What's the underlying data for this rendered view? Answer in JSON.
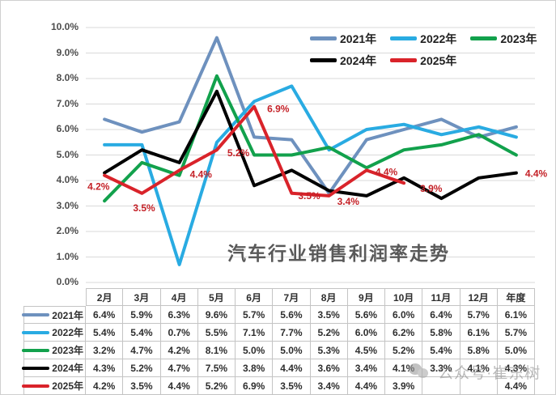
{
  "page": {
    "background": "#ffffff",
    "border_color": "#cfcfcf"
  },
  "chart": {
    "title": "汽车行业销售利润率走势",
    "watermark": "公众号·崔东树",
    "y_ticks": [
      "10.0%",
      "9.0%",
      "8.0%",
      "7.0%",
      "6.0%",
      "5.0%",
      "4.0%",
      "3.0%",
      "2.0%",
      "1.0%",
      "0.0%"
    ]
  },
  "chart_data": {
    "type": "line",
    "title": "汽车行业销售利润率走势",
    "categories": [
      "2月",
      "3月",
      "4月",
      "5月",
      "6月",
      "7月",
      "8月",
      "9月",
      "10月",
      "11月",
      "12月",
      "年度"
    ],
    "series": [
      {
        "name": "2021年",
        "color": "#6E91BE",
        "values": [
          6.4,
          5.9,
          6.3,
          9.6,
          5.7,
          5.6,
          3.5,
          5.6,
          6.0,
          6.4,
          5.7,
          6.1
        ]
      },
      {
        "name": "2022年",
        "color": "#29ABE2",
        "values": [
          5.4,
          5.4,
          0.7,
          5.5,
          7.1,
          7.7,
          5.2,
          6.0,
          6.2,
          5.8,
          6.1,
          5.7
        ]
      },
      {
        "name": "2023年",
        "color": "#12A14C",
        "values": [
          3.2,
          4.7,
          4.2,
          8.1,
          5.0,
          5.0,
          5.3,
          4.5,
          5.2,
          5.4,
          5.8,
          5.0
        ]
      },
      {
        "name": "2024年",
        "color": "#000000",
        "values": [
          4.3,
          5.2,
          4.7,
          7.5,
          3.8,
          4.4,
          3.6,
          3.4,
          4.1,
          3.3,
          4.1,
          4.3
        ]
      },
      {
        "name": "2025年",
        "color": "#D9232A",
        "values": [
          4.2,
          3.5,
          4.4,
          5.2,
          6.9,
          3.5,
          3.4,
          4.4,
          3.9,
          null,
          null,
          4.4
        ]
      }
    ],
    "ylim": [
      0,
      10
    ],
    "y_tick_step": 1,
    "grid": true,
    "gridline_color": "#d9d9d9",
    "legend_position": "top-right",
    "legend_rows": [
      [
        "2021年",
        "2022年",
        "2023年"
      ],
      [
        "2024年",
        "2025年"
      ]
    ],
    "data_labels": {
      "series": "2025年",
      "color": "#C42127",
      "labels": [
        "4.2%",
        "3.5%",
        "4.4%",
        "5.2%",
        "6.9%",
        "3.5%",
        "3.4%",
        "4.4%",
        "3.9%",
        "",
        "",
        "4.4%"
      ]
    }
  },
  "table": {
    "columns": [
      "2月",
      "3月",
      "4月",
      "5月",
      "6月",
      "7月",
      "8月",
      "9月",
      "10月",
      "11月",
      "12月",
      "年度"
    ],
    "rows": [
      {
        "label": "2021年",
        "color": "#6E91BE",
        "values": [
          "6.4%",
          "5.9%",
          "6.3%",
          "9.6%",
          "5.7%",
          "5.6%",
          "3.5%",
          "5.6%",
          "6.0%",
          "6.4%",
          "5.7%",
          "6.1%"
        ]
      },
      {
        "label": "2022年",
        "color": "#29ABE2",
        "values": [
          "5.4%",
          "5.4%",
          "0.7%",
          "5.5%",
          "7.1%",
          "7.7%",
          "5.2%",
          "6.0%",
          "6.2%",
          "5.8%",
          "6.1%",
          "5.7%"
        ]
      },
      {
        "label": "2023年",
        "color": "#12A14C",
        "values": [
          "3.2%",
          "4.7%",
          "4.2%",
          "8.1%",
          "5.0%",
          "5.0%",
          "5.3%",
          "4.5%",
          "5.2%",
          "5.4%",
          "5.8%",
          "5.0%"
        ]
      },
      {
        "label": "2024年",
        "color": "#000000",
        "values": [
          "4.3%",
          "5.2%",
          "4.7%",
          "7.5%",
          "3.8%",
          "4.4%",
          "3.6%",
          "3.4%",
          "4.1%",
          "3.3%",
          "4.1%",
          "4.3%"
        ]
      },
      {
        "label": "2025年",
        "color": "#D9232A",
        "values": [
          "4.2%",
          "3.5%",
          "4.4%",
          "5.2%",
          "6.9%",
          "3.5%",
          "3.4%",
          "4.4%",
          "3.9%",
          "",
          "",
          "4.4%"
        ]
      }
    ]
  }
}
